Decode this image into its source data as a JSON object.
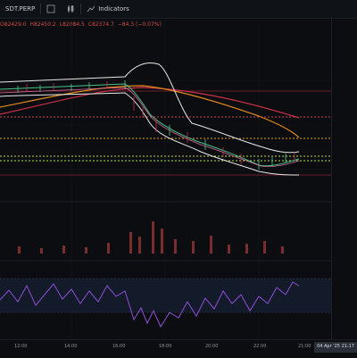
{
  "toolbar": {
    "symbol": "SDT.PERP",
    "indicators_label": "Indicators"
  },
  "ohlc": {
    "open": "O82429.0",
    "high": "H82450.2",
    "low": "L82084.5",
    "close": "C82374.7",
    "change": "−84.3 (−0.07%)"
  },
  "time_axis": {
    "labels": [
      "12:00",
      "14:00",
      "16:00",
      "18:00",
      "20:00",
      "22:00",
      "21:00"
    ],
    "current": "04 Apr '25  21:17"
  },
  "colors": {
    "background": "#0b0d10",
    "bollinger": "#e8e8e8",
    "ema_orange": "#e08a1e",
    "ema_red": "#c8304a",
    "ema_green": "#49c48a",
    "dotted_red": "#d0455a",
    "dotted_orange": "#e0a12b",
    "dotted_green": "#b7e05a",
    "volume": "#7a2d2d",
    "rsi": "#8e4fd6"
  }
}
